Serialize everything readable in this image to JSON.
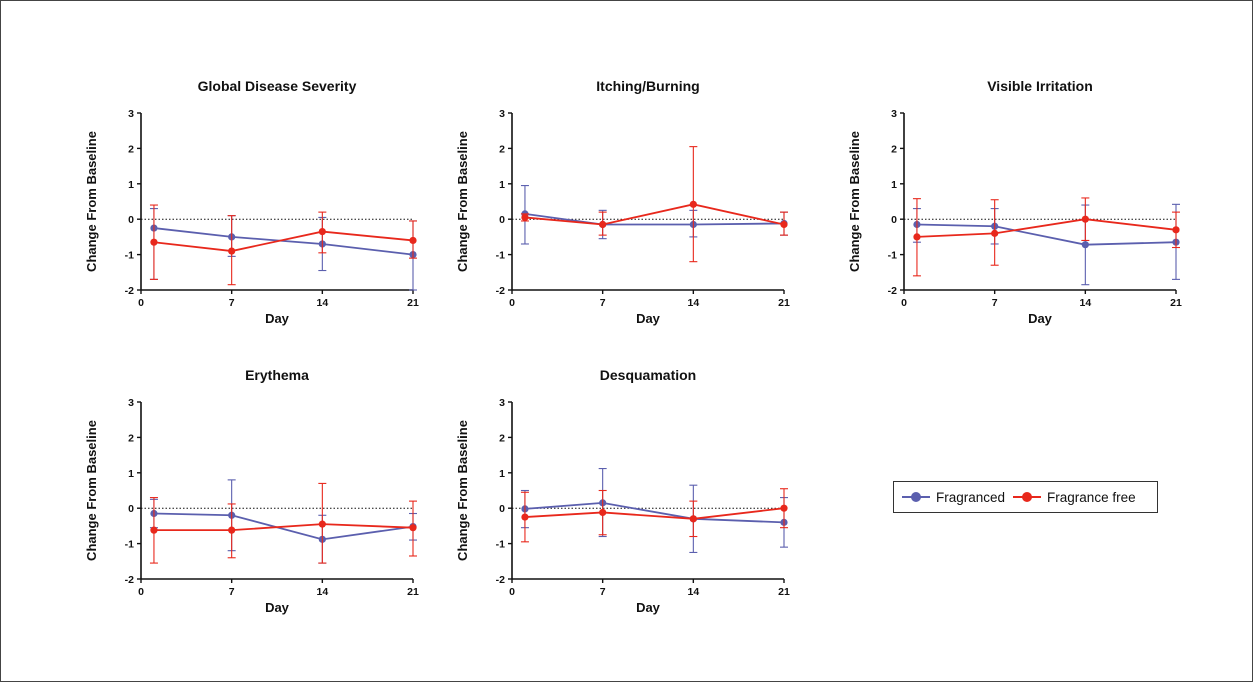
{
  "colors": {
    "fragranced": "#5b5fae",
    "fragrance_free": "#e8281c",
    "axis": "#111111"
  },
  "legend": {
    "items": [
      {
        "label": "Fragranced",
        "series": 0
      },
      {
        "label": "Fragrance free",
        "series": 1
      }
    ],
    "placement": "right-middle"
  },
  "chart_data": [
    {
      "type": "line",
      "title": "Global Disease Severity",
      "xlabel": "Day",
      "ylabel": "Change From Baseline",
      "xlim": [
        0,
        21
      ],
      "ylim": [
        -2,
        3
      ],
      "xticks": [
        "0",
        "7",
        "14",
        "21"
      ],
      "yticks": [
        "3",
        "2",
        "1",
        "0",
        "-1",
        "-2"
      ],
      "reference_line_y": 0,
      "series": [
        {
          "name": "Fragranced",
          "x": [
            1,
            7,
            14,
            21
          ],
          "y": [
            -0.25,
            -0.5,
            -0.7,
            -1.0
          ],
          "err_low": [
            -1.7,
            -1.05,
            -1.45,
            -2.0
          ],
          "err_high": [
            0.3,
            0.1,
            0.05,
            -0.05
          ]
        },
        {
          "name": "Fragrance free",
          "x": [
            1,
            7,
            14,
            21
          ],
          "y": [
            -0.65,
            -0.9,
            -0.35,
            -0.6
          ],
          "err_low": [
            -1.7,
            -1.85,
            -0.95,
            -1.1
          ],
          "err_high": [
            0.4,
            0.1,
            0.2,
            -0.05
          ]
        }
      ]
    },
    {
      "type": "line",
      "title": "Itching/Burning",
      "xlabel": "Day",
      "ylabel": "Change From Baseline",
      "xlim": [
        0,
        21
      ],
      "ylim": [
        -2,
        3
      ],
      "xticks": [
        "0",
        "7",
        "14",
        "21"
      ],
      "yticks": [
        "3",
        "2",
        "1",
        "0",
        "-1",
        "-2"
      ],
      "reference_line_y": 0,
      "series": [
        {
          "name": "Fragranced",
          "x": [
            1,
            7,
            14,
            21
          ],
          "y": [
            0.15,
            -0.15,
            -0.15,
            -0.12
          ],
          "err_low": [
            -0.7,
            -0.55,
            -0.5,
            -0.45
          ],
          "err_high": [
            0.95,
            0.25,
            0.25,
            0.2
          ]
        },
        {
          "name": "Fragrance free",
          "x": [
            1,
            7,
            14,
            21
          ],
          "y": [
            0.05,
            -0.15,
            0.42,
            -0.15
          ],
          "err_low": [
            -0.05,
            -0.45,
            -1.2,
            -0.45
          ],
          "err_high": [
            0.15,
            0.2,
            2.05,
            0.2
          ]
        }
      ]
    },
    {
      "type": "line",
      "title": "Visible  Irritation",
      "xlabel": "Day",
      "ylabel": "Change From Baseline",
      "xlim": [
        0,
        21
      ],
      "ylim": [
        -2,
        3
      ],
      "xticks": [
        "0",
        "7",
        "14",
        "21"
      ],
      "yticks": [
        "3",
        "2",
        "1",
        "0",
        "-1",
        "-2"
      ],
      "reference_line_y": 0,
      "series": [
        {
          "name": "Fragranced",
          "x": [
            1,
            7,
            14,
            21
          ],
          "y": [
            -0.15,
            -0.2,
            -0.72,
            -0.65
          ],
          "err_low": [
            -0.65,
            -0.7,
            -1.85,
            -1.7
          ],
          "err_high": [
            0.3,
            0.3,
            0.4,
            0.42
          ]
        },
        {
          "name": "Fragrance free",
          "x": [
            1,
            7,
            14,
            21
          ],
          "y": [
            -0.5,
            -0.4,
            0.0,
            -0.3
          ],
          "err_low": [
            -1.6,
            -1.3,
            -0.6,
            -0.8
          ],
          "err_high": [
            0.58,
            0.55,
            0.6,
            0.2
          ]
        }
      ]
    },
    {
      "type": "line",
      "title": "Erythema",
      "xlabel": "Day",
      "ylabel": "Change From Baseline",
      "xlim": [
        0,
        21
      ],
      "ylim": [
        -2,
        3
      ],
      "xticks": [
        "0",
        "7",
        "14",
        "21"
      ],
      "yticks": [
        "3",
        "2",
        "1",
        "0",
        "-1",
        "-2"
      ],
      "reference_line_y": 0,
      "series": [
        {
          "name": "Fragranced",
          "x": [
            1,
            7,
            14,
            21
          ],
          "y": [
            -0.15,
            -0.2,
            -0.88,
            -0.52
          ],
          "err_low": [
            -0.55,
            -1.2,
            -1.55,
            -0.9
          ],
          "err_high": [
            0.25,
            0.8,
            -0.2,
            -0.15
          ]
        },
        {
          "name": "Fragrance free",
          "x": [
            1,
            7,
            14,
            21
          ],
          "y": [
            -0.62,
            -0.62,
            -0.45,
            -0.55
          ],
          "err_low": [
            -1.55,
            -1.4,
            -1.55,
            -1.35
          ],
          "err_high": [
            0.3,
            0.12,
            0.7,
            0.2
          ]
        }
      ]
    },
    {
      "type": "line",
      "title": "Desquamation",
      "xlabel": "Day",
      "ylabel": "Change From Baseline",
      "xlim": [
        0,
        21
      ],
      "ylim": [
        -2,
        3
      ],
      "xticks": [
        "0",
        "7",
        "14",
        "21"
      ],
      "yticks": [
        "3",
        "2",
        "1",
        "0",
        "-1",
        "-2"
      ],
      "reference_line_y": 0,
      "series": [
        {
          "name": "Fragranced",
          "x": [
            1,
            7,
            14,
            21
          ],
          "y": [
            -0.02,
            0.15,
            -0.3,
            -0.4
          ],
          "err_low": [
            -0.55,
            -0.8,
            -1.25,
            -1.1
          ],
          "err_high": [
            0.5,
            1.12,
            0.65,
            0.3
          ]
        },
        {
          "name": "Fragrance free",
          "x": [
            1,
            7,
            14,
            21
          ],
          "y": [
            -0.25,
            -0.12,
            -0.3,
            0.0
          ],
          "err_low": [
            -0.95,
            -0.75,
            -0.8,
            -0.55
          ],
          "err_high": [
            0.45,
            0.5,
            0.2,
            0.55
          ]
        }
      ]
    }
  ]
}
